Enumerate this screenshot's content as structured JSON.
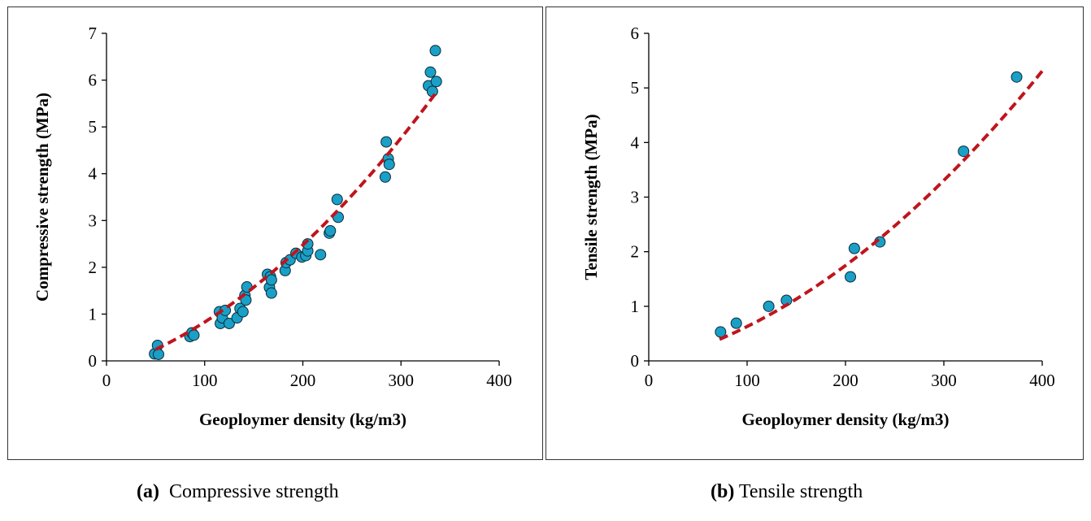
{
  "captions": [
    {
      "letter": "(a)",
      "text": "Compressive strength"
    },
    {
      "letter": "(b)",
      "text": "Tensile strength"
    }
  ],
  "colors": {
    "marker_fill": "#1aa0c6",
    "marker_stroke": "#0b2a3a",
    "trend": "#c0141c",
    "axis": "#000000"
  },
  "chart_data": [
    {
      "type": "scatter",
      "xlabel": "Geoploymer density (kg/m3)",
      "ylabel": "Compressive strength (MPa)",
      "xlim": [
        0,
        400
      ],
      "ylim": [
        0,
        7
      ],
      "xticks": [
        0,
        100,
        200,
        300,
        400
      ],
      "yticks": [
        0,
        1,
        2,
        3,
        4,
        5,
        6,
        7
      ],
      "grid": false,
      "points": [
        [
          49,
          0.15
        ],
        [
          52,
          0.33
        ],
        [
          53,
          0.14
        ],
        [
          85,
          0.52
        ],
        [
          87,
          0.6
        ],
        [
          89,
          0.55
        ],
        [
          115,
          1.05
        ],
        [
          116,
          0.8
        ],
        [
          118,
          0.92
        ],
        [
          121,
          1.08
        ],
        [
          125,
          0.8
        ],
        [
          133,
          0.92
        ],
        [
          136,
          1.12
        ],
        [
          139,
          1.05
        ],
        [
          141,
          1.4
        ],
        [
          142,
          1.3
        ],
        [
          143,
          1.58
        ],
        [
          164,
          1.85
        ],
        [
          166,
          1.57
        ],
        [
          167,
          1.8
        ],
        [
          168,
          1.45
        ],
        [
          168,
          1.73
        ],
        [
          182,
          1.93
        ],
        [
          183,
          2.1
        ],
        [
          187,
          2.16
        ],
        [
          193,
          2.3
        ],
        [
          199,
          2.22
        ],
        [
          203,
          2.25
        ],
        [
          205,
          2.35
        ],
        [
          205,
          2.5
        ],
        [
          218,
          2.27
        ],
        [
          227,
          2.73
        ],
        [
          228,
          2.78
        ],
        [
          235,
          3.45
        ],
        [
          236,
          3.07
        ],
        [
          284,
          3.93
        ],
        [
          285,
          4.68
        ],
        [
          287,
          4.32
        ],
        [
          288,
          4.2
        ],
        [
          328,
          5.88
        ],
        [
          330,
          6.17
        ],
        [
          332,
          5.76
        ],
        [
          335,
          6.63
        ],
        [
          336,
          5.97
        ]
      ],
      "trend": {
        "type": "polynomial",
        "coefficients": [
          3.19e-05,
          0.0069,
          -0.18
        ],
        "x_range": [
          50,
          335
        ]
      }
    },
    {
      "type": "scatter",
      "xlabel": "Geoploymer density (kg/m3)",
      "ylabel": "Tensile  strength (MPa)",
      "xlim": [
        0,
        400
      ],
      "ylim": [
        0,
        6
      ],
      "xticks": [
        0,
        100,
        200,
        300,
        400
      ],
      "yticks": [
        0,
        1,
        2,
        3,
        4,
        5,
        6
      ],
      "grid": false,
      "points": [
        [
          73,
          0.53
        ],
        [
          89,
          0.69
        ],
        [
          122,
          1.0
        ],
        [
          140,
          1.11
        ],
        [
          205,
          1.54
        ],
        [
          209,
          2.06
        ],
        [
          235,
          2.18
        ],
        [
          320,
          3.84
        ],
        [
          374,
          5.2
        ]
      ],
      "trend": {
        "type": "polynomial",
        "coefficients": [
          2.21e-05,
          0.00455,
          -0.0472
        ],
        "x_range": [
          72,
          400
        ]
      }
    }
  ]
}
